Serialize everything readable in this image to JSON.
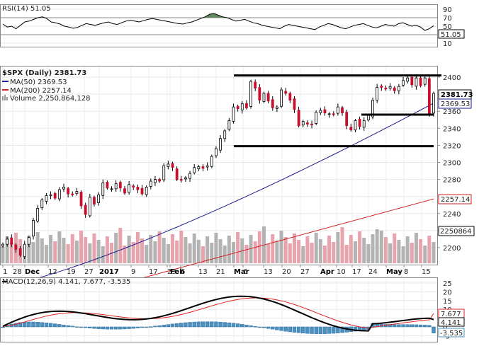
{
  "rsi": {
    "label": "RSI(14) 51.05",
    "ticks": [
      "90",
      "70",
      "50",
      "30",
      "10"
    ],
    "tick_values": [
      90,
      70,
      50,
      30,
      10
    ],
    "current_tag": "51.05",
    "current_value": 51.05,
    "values": [
      55,
      48,
      50,
      44,
      52,
      60,
      62,
      66,
      70,
      72,
      68,
      60,
      58,
      55,
      50,
      48,
      45,
      47,
      52,
      56,
      54,
      52,
      55,
      58,
      60,
      56,
      54,
      58,
      62,
      64,
      62,
      60,
      63,
      66,
      68,
      66,
      64,
      62,
      60,
      58,
      56,
      55,
      58,
      60,
      64,
      68,
      72,
      78,
      80,
      76,
      72,
      70,
      66,
      62,
      64,
      66,
      62,
      58,
      56,
      52,
      50,
      48,
      46,
      44,
      50,
      54,
      52,
      50,
      48,
      46,
      44,
      42,
      48,
      52,
      56,
      54,
      50,
      46,
      44,
      48,
      52,
      54,
      56,
      52,
      48,
      46,
      50,
      54,
      52,
      50,
      56,
      58,
      54,
      50,
      52,
      48,
      40,
      44,
      51
    ]
  },
  "price": {
    "title": "$SPX (Daily) 2381.73",
    "ma50_label": "MA(50) 2369.53",
    "ma200_label": "MA(200) 2257.14",
    "volume_label": "Volume 2,250,864,128",
    "y_ticks": [
      "2400",
      "2380",
      "2360",
      "2340",
      "2320",
      "2300",
      "2280",
      "2260",
      "2240",
      "2220",
      "2200"
    ],
    "y_tick_values": [
      2400,
      2380,
      2360,
      2340,
      2320,
      2300,
      2280,
      2260,
      2240,
      2220,
      2200
    ],
    "tags": {
      "close": "2381.73",
      "ma50": "2369.53",
      "ma200": "2257.14",
      "volume": "2250864"
    },
    "tag_values": {
      "close": 2381.73,
      "ma50": 2369.53,
      "ma200": 2257.14
    },
    "hlines": [
      2402,
      2356,
      2319
    ],
    "x_labels": [
      "1",
      "28",
      "Dec",
      "12",
      "19",
      "27",
      "2017",
      "9",
      "17",
      "23",
      "Feb",
      "6",
      "13",
      "21",
      "Mar",
      "6",
      "13",
      "20",
      "27",
      "Apr",
      "10",
      "17",
      "24",
      "May",
      "8",
      "15"
    ],
    "x_label_bold": [
      "Dec",
      "2017",
      "Feb",
      "Mar",
      "Apr",
      "May"
    ]
  },
  "macd": {
    "label": "MACD(12,26,9) 4.141, 7.677, -3.535",
    "ticks": [
      "25",
      "20",
      "15",
      "10",
      "5",
      "0",
      "-5"
    ],
    "tick_values": [
      25,
      20,
      15,
      10,
      5,
      0,
      -5
    ],
    "tags": {
      "signal": "7.677",
      "macd": "4.141",
      "hist": "-3.535"
    },
    "tag_values": {
      "signal": 7.677,
      "macd": 4.141,
      "hist": -3.535
    }
  },
  "colors": {
    "up": "#ffffff",
    "down": "#c8102e",
    "ma50": "#1a1a8c",
    "ma200": "#d22020",
    "vol_up": "#b3b3b3",
    "vol_down": "#e8a3ad",
    "hist": "#4a90c0",
    "macd": "#000000",
    "signal": "#e02020",
    "rsi_fill": "#5e8a5e"
  },
  "chart_data": {
    "type": "line",
    "title": "$SPX (Daily) 2381.73",
    "ylim": [
      2180,
      2410
    ],
    "x_tick_labels": [
      "1",
      "28",
      "Dec",
      "12",
      "19",
      "27",
      "2017",
      "9",
      "17",
      "23",
      "Feb",
      "6",
      "13",
      "21",
      "Mar",
      "6",
      "13",
      "20",
      "27",
      "Apr",
      "10",
      "17",
      "24",
      "May",
      "8",
      "15"
    ],
    "close": [
      2204,
      2210,
      2204,
      2198,
      2191,
      2204,
      2212,
      2232,
      2246,
      2256,
      2261,
      2262,
      2258,
      2268,
      2271,
      2263,
      2262,
      2266,
      2249,
      2239,
      2259,
      2251,
      2262,
      2276,
      2270,
      2269,
      2275,
      2270,
      2264,
      2274,
      2271,
      2268,
      2263,
      2271,
      2278,
      2280,
      2278,
      2296,
      2298,
      2294,
      2280,
      2279,
      2282,
      2287,
      2294,
      2295,
      2293,
      2296,
      2307,
      2316,
      2328,
      2337,
      2349,
      2365,
      2363,
      2369,
      2364,
      2395,
      2387,
      2373,
      2381,
      2372,
      2364,
      2365,
      2385,
      2381,
      2373,
      2362,
      2343,
      2348,
      2345,
      2344,
      2359,
      2361,
      2358,
      2357,
      2356,
      2365,
      2358,
      2343,
      2338,
      2349,
      2342,
      2349,
      2355,
      2373,
      2388,
      2388,
      2386,
      2389,
      2384,
      2389,
      2396,
      2399,
      2391,
      2399,
      2390,
      2399,
      2357,
      2381
    ],
    "series": [
      {
        "name": "MA(50) 2369.53",
        "last": 2369.53
      },
      {
        "name": "MA(200) 2257.14",
        "last": 2257.14
      },
      {
        "name": "Volume 2,250,864,128",
        "last": 2250864128
      }
    ],
    "reference_levels": [
      2402,
      2356,
      2319
    ]
  }
}
